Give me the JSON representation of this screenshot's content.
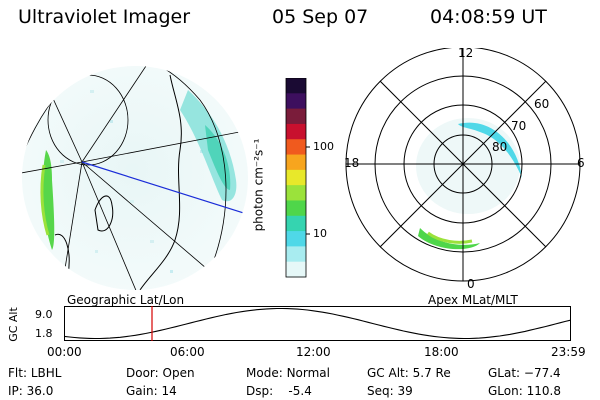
{
  "header": {
    "instrument": "Ultraviolet Imager",
    "date": "05 Sep 07",
    "time": "04:08:59 UT"
  },
  "colorbar": {
    "unit_label": "photon cm⁻²s⁻¹",
    "ticks": [
      "100",
      "10"
    ],
    "colors": [
      "#1a0a33",
      "#3d0f5e",
      "#7a1c3a",
      "#c8102e",
      "#f05a1e",
      "#f7a51e",
      "#e8e82a",
      "#9be23b",
      "#4fd64a",
      "#35d4b0",
      "#4fd8e8",
      "#a8ecf0",
      "#e6f8f8"
    ]
  },
  "left_panel": {
    "label": "Geographic Lat/Lon"
  },
  "right_panel": {
    "label": "Apex MLat/MLT",
    "mlt_labels": {
      "top": "12",
      "left": "18",
      "right": "6",
      "bottom": "0"
    },
    "lat_labels": [
      "60",
      "70",
      "80"
    ]
  },
  "altitude_plot": {
    "ylabel": "GC Alt",
    "yticks": [
      "9.0",
      "1.8"
    ],
    "xticks": [
      "00:00",
      "06:00",
      "12:00",
      "18:00",
      "23:59"
    ],
    "marker_hour": 4.15
  },
  "info": {
    "filter_label": "Flt:",
    "filter": "LBHL",
    "ip_label": "IP:",
    "ip": "36.0",
    "door_label": "Door:",
    "door": "Open",
    "gain_label": "Gain:",
    "gain": "14",
    "mode_label": "Mode:",
    "mode": "Normal",
    "dsp_label": "Dsp:",
    "dsp": "-5.4",
    "gcalt_label": "GC Alt:",
    "gcalt": "5.7 Re",
    "seq_label": "Seq:",
    "seq": "39",
    "glat_label": "GLat:",
    "glat": "−77.4",
    "glon_label": "GLon:",
    "glon": "110.8"
  }
}
